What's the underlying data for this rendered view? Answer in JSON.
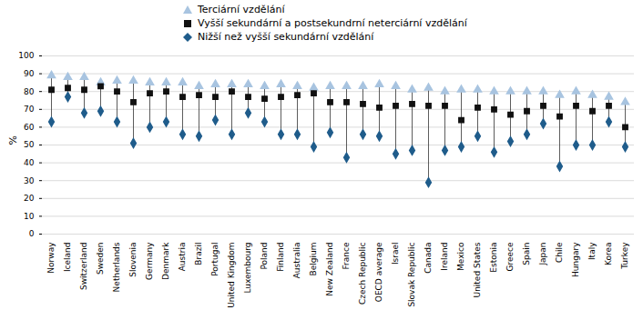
{
  "chart_data": {
    "type": "scatter",
    "categories": [
      "Norway",
      "Iceland",
      "Switzerland",
      "Sweden",
      "Netherlands",
      "Slovenia",
      "Germany",
      "Denmark",
      "Austria",
      "Brazil",
      "Portugal",
      "United Kingdom",
      "Luxembourg",
      "Poland",
      "Finland",
      "Australia",
      "Belgium",
      "New Zealand",
      "France",
      "Czech Republic",
      "OECD average",
      "Israel",
      "Slovak Republic",
      "Canada",
      "Ireland",
      "Mexico",
      "United States",
      "Estonia",
      "Greece",
      "Spain",
      "Japan",
      "Chile",
      "Hungary",
      "Italy",
      "Korea",
      "Turkey"
    ],
    "series": [
      {
        "name": "Terciární vzdělání",
        "color": "#a8c4e0",
        "marker": "triangle",
        "values": [
          89,
          88,
          88,
          85,
          86,
          86,
          85,
          85,
          85,
          83,
          84,
          84,
          84,
          83,
          84,
          83,
          82,
          83,
          83,
          83,
          84,
          83,
          81,
          82,
          80,
          81,
          81,
          80,
          80,
          80,
          80,
          78,
          80,
          78,
          77,
          74
        ]
      },
      {
        "name": "Vyšší sekundární a postsekundrní neterciární vzdělání",
        "color": "#111111",
        "marker": "square",
        "values": [
          81,
          82,
          81,
          83,
          80,
          74,
          79,
          80,
          77,
          78,
          77,
          80,
          77,
          76,
          77,
          78,
          79,
          74,
          74,
          73,
          71,
          72,
          73,
          72,
          72,
          64,
          71,
          70,
          67,
          69,
          72,
          66,
          72,
          69,
          72,
          60
        ]
      },
      {
        "name": "Nižší než vyšší sekundární vzdělání",
        "color": "#1f5c8b",
        "marker": "diamond",
        "values": [
          63,
          77,
          68,
          69,
          63,
          51,
          60,
          63,
          56,
          55,
          64,
          56,
          68,
          63,
          56,
          56,
          49,
          57,
          43,
          56,
          55,
          45,
          47,
          29,
          47,
          49,
          55,
          46,
          52,
          56,
          62,
          38,
          50,
          50,
          63,
          49
        ]
      }
    ],
    "y_label": "%",
    "ylim": [
      0,
      100
    ],
    "yticks": [
      0,
      10,
      20,
      30,
      40,
      50,
      60,
      70,
      80,
      90,
      100
    ],
    "grid": true,
    "legend": "top"
  }
}
